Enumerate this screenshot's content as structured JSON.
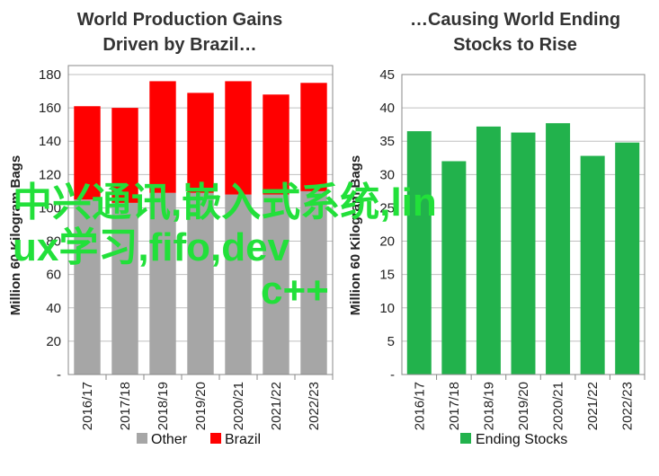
{
  "chart_data": [
    {
      "type": "bar",
      "stacked": true,
      "title_lines": [
        "World Production Gains",
        "Driven by Brazil…"
      ],
      "ylabel": "Million 60 Kilogram Bags",
      "xlabel": "",
      "ylim": [
        0,
        180
      ],
      "yticks": [
        0,
        20,
        40,
        60,
        80,
        100,
        120,
        140,
        160,
        180
      ],
      "ytick_labels": [
        "-",
        "20",
        "40",
        "60",
        "80",
        "100",
        "120",
        "140",
        "160",
        "180"
      ],
      "grid": true,
      "legend_placement": "bottom",
      "categories": [
        "2016/17",
        "2017/18",
        "2018/19",
        "2019/20",
        "2020/21",
        "2021/22",
        "2022/23"
      ],
      "series": [
        {
          "name": "Other",
          "color": "#a6a6a6",
          "values": [
            105,
            103,
            109,
            109,
            108,
            108,
            110
          ]
        },
        {
          "name": "Brazil",
          "color": "#ff0000",
          "values": [
            56,
            57,
            67,
            60,
            68,
            60,
            65
          ]
        }
      ]
    },
    {
      "type": "bar",
      "title_lines": [
        "…Causing World Ending",
        "Stocks to Rise"
      ],
      "ylabel": "Million 60 Kilogram Bags",
      "xlabel": "",
      "ylim": [
        0,
        45
      ],
      "yticks": [
        0,
        5,
        10,
        15,
        20,
        25,
        30,
        35,
        40,
        45
      ],
      "ytick_labels": [
        "-",
        "5",
        "10",
        "15",
        "20",
        "25",
        "30",
        "35",
        "40",
        "45"
      ],
      "grid": true,
      "legend_placement": "bottom",
      "categories": [
        "2016/17",
        "2017/18",
        "2018/19",
        "2019/20",
        "2020/21",
        "2021/22",
        "2022/23"
      ],
      "series": [
        {
          "name": "Ending Stocks",
          "color": "#22b24c",
          "values": [
            36.5,
            32.0,
            37.2,
            36.3,
            37.7,
            32.8,
            34.8
          ]
        }
      ]
    }
  ],
  "overlay_text": {
    "line1": "中兴通讯,嵌入式系统,lin",
    "line2": "ux学习,fifo,dev",
    "line3": "c++",
    "color": "#22e03a"
  }
}
